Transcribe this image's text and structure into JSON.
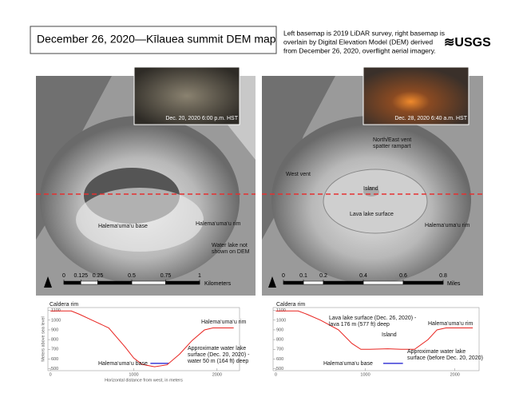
{
  "header": {
    "title": "December 26, 2020—Kīlauea summit DEM map",
    "description": [
      "Left basemap is 2019 LiDAR survey, right basemap is",
      "overlain by Digital Elevation Model (DEM) derived",
      "from December 26, 2020, overflight aerial imagery."
    ],
    "logo": "≋USGS"
  },
  "maps": [
    {
      "photo_caption": "Dec. 20, 2020 6:00 p.m. HST",
      "labels": [
        [
          "Halema‘uma‘u base"
        ],
        [
          "Halema‘uma‘u rim"
        ],
        [
          "Water lake not",
          "shown on DEM"
        ]
      ],
      "scale": {
        "ticks": [
          0,
          0.125,
          0.25,
          0.5,
          0.75,
          1
        ],
        "unit": "Kilometers"
      }
    },
    {
      "photo_caption": "Dec. 28, 2020 6:40 a.m. HST",
      "labels": [
        [
          "North/East vent",
          "spatter rampart"
        ],
        [
          "West vent"
        ],
        [
          "Island"
        ],
        [
          "Lava lake surface"
        ],
        [
          "Halema‘uma‘u rim"
        ]
      ],
      "scale": {
        "ticks": [
          0,
          0.1,
          0.2,
          0.4,
          0.6,
          0.8
        ],
        "unit": "Miles"
      }
    }
  ],
  "profiles": [
    {
      "y_label": "Meters above sea level",
      "x_label": "Horizontal distance from west, in meters",
      "xlim": [
        -30,
        2270
      ],
      "ylim": [
        480,
        1130
      ],
      "xticks": [
        0,
        1000,
        2000
      ],
      "yticks": [
        500,
        600,
        700,
        800,
        900,
        1000,
        1100
      ],
      "annotations": [
        [
          "Caldera rim"
        ],
        [
          "Halema‘uma‘u rim"
        ],
        [
          "Halema‘uma‘u base"
        ],
        [
          "Approximate water lake",
          "surface (Dec. 20, 2020) -",
          "water 50 m (164 ft) deep"
        ]
      ],
      "profile": {
        "color": "#e8231f",
        "x": [
          0,
          250,
          350,
          500,
          700,
          900,
          1000,
          1100,
          1250,
          1400,
          1550,
          1700,
          1850,
          1950,
          2200
        ],
        "y": [
          1095,
          1095,
          1060,
          1000,
          920,
          720,
          610,
          545,
          520,
          540,
          650,
          790,
          900,
          920,
          920
        ]
      },
      "lake": {
        "color": "#3b3bd6",
        "x": [
          1200,
          1420
        ],
        "y": [
          555,
          555
        ]
      }
    },
    {
      "xlim": [
        -30,
        2270
      ],
      "ylim": [
        480,
        1130
      ],
      "xticks": [
        0,
        1000,
        2000
      ],
      "yticks": [
        500,
        600,
        700,
        800,
        900,
        1000,
        1100
      ],
      "annotations": [
        [
          "Caldera rim"
        ],
        [
          "Lava lake surface (Dec. 26, 2020) -",
          "lava 176 m (577 ft) deep"
        ],
        [
          "Island"
        ],
        [
          "Halema‘uma‘u rim"
        ],
        [
          "Halema‘uma‘u base"
        ],
        [
          "Approximate water lake",
          "surface (before Dec. 20, 2020)"
        ]
      ],
      "profile": {
        "color": "#e8231f",
        "x": [
          0,
          250,
          350,
          500,
          700,
          850,
          950,
          1050,
          1250,
          1400,
          1550,
          1700,
          1800,
          1900,
          2200
        ],
        "y": [
          1095,
          1095,
          1060,
          1000,
          900,
          760,
          700,
          700,
          705,
          700,
          700,
          800,
          900,
          920,
          920
        ]
      },
      "lake": {
        "color": "#3b3bd6",
        "x": [
          1200,
          1420
        ],
        "y": [
          555,
          555
        ]
      }
    }
  ]
}
